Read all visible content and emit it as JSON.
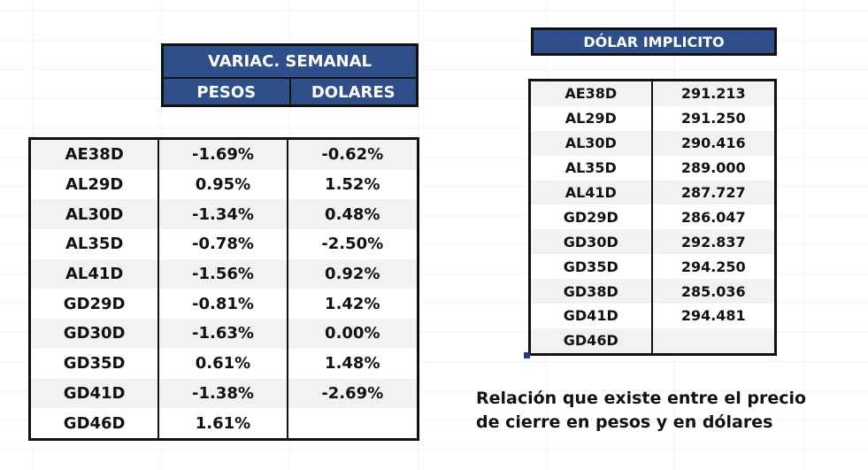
{
  "left_panel": {
    "title": "VARIAC. SEMANAL",
    "col_pesos": "PESOS",
    "col_dolares": "DOLARES",
    "rows": [
      {
        "ticker": "AE38D",
        "pesos": "-1.69%",
        "dolares": "-0.62%"
      },
      {
        "ticker": "AL29D",
        "pesos": "0.95%",
        "dolares": "1.52%"
      },
      {
        "ticker": "AL30D",
        "pesos": "-1.34%",
        "dolares": "0.48%"
      },
      {
        "ticker": "AL35D",
        "pesos": "-0.78%",
        "dolares": "-2.50%"
      },
      {
        "ticker": "AL41D",
        "pesos": "-1.56%",
        "dolares": "0.92%"
      },
      {
        "ticker": "GD29D",
        "pesos": "-0.81%",
        "dolares": "1.42%"
      },
      {
        "ticker": "GD30D",
        "pesos": "-1.63%",
        "dolares": "0.00%"
      },
      {
        "ticker": "GD35D",
        "pesos": "0.61%",
        "dolares": "1.48%"
      },
      {
        "ticker": "GD41D",
        "pesos": "-1.38%",
        "dolares": "-2.69%"
      },
      {
        "ticker": "GD46D",
        "pesos": "1.61%",
        "dolares": ""
      }
    ]
  },
  "right_panel": {
    "title": "DÓLAR IMPLICITO",
    "rows": [
      {
        "ticker": "AE38D",
        "value": "291.213"
      },
      {
        "ticker": "AL29D",
        "value": "291.250"
      },
      {
        "ticker": "AL30D",
        "value": "290.416"
      },
      {
        "ticker": "AL35D",
        "value": "289.000"
      },
      {
        "ticker": "AL41D",
        "value": "287.727"
      },
      {
        "ticker": "GD29D",
        "value": "286.047"
      },
      {
        "ticker": "GD30D",
        "value": "292.837"
      },
      {
        "ticker": "GD35D",
        "value": "294.250"
      },
      {
        "ticker": "GD38D",
        "value": "285.036"
      },
      {
        "ticker": "GD41D",
        "value": "294.481"
      },
      {
        "ticker": "GD46D",
        "value": ""
      }
    ]
  },
  "note": {
    "line1": "Relación que existe entre el precio",
    "line2": "de cierre en pesos y en dólares"
  },
  "colors": {
    "header_bg": "#2f4f8a",
    "header_text": "#ffffff",
    "row_shade": "#f2f2f2"
  }
}
